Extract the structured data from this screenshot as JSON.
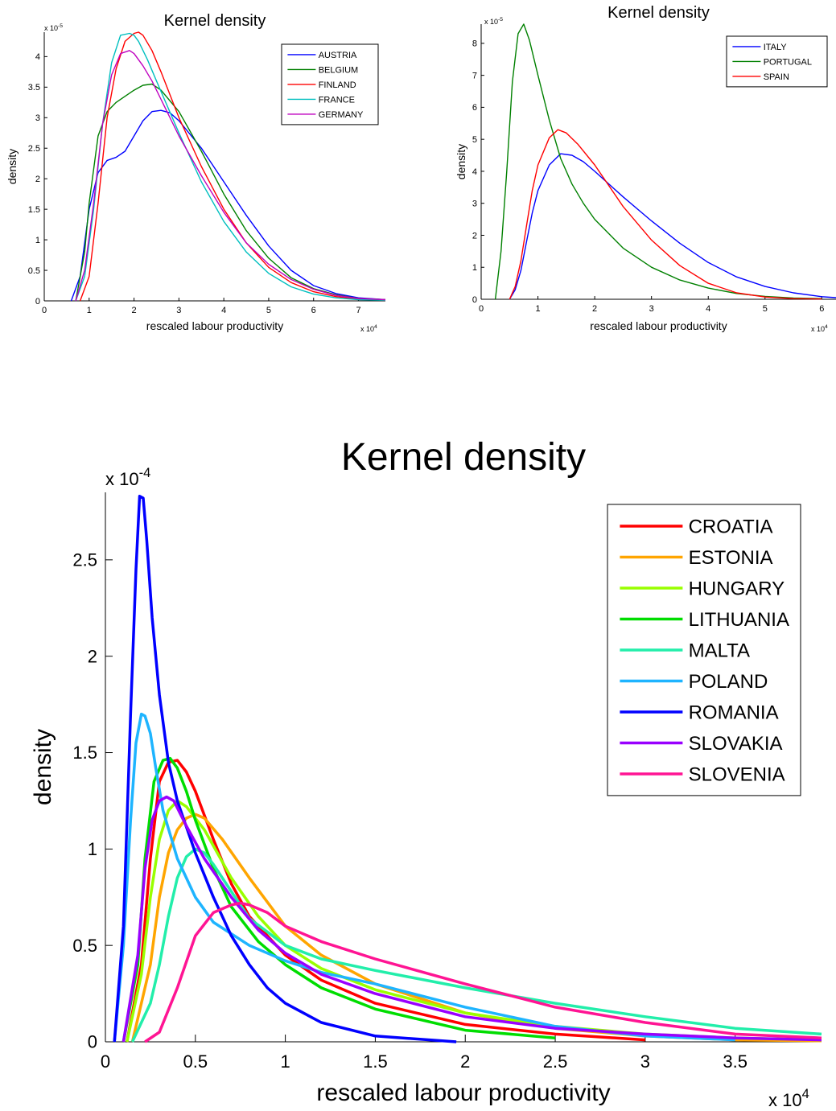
{
  "chart_data": [
    {
      "type": "line",
      "title": "Kernel density",
      "xlabel": "rescaled labour productivity",
      "ylabel": "density",
      "x_exponent_label": "x 10",
      "x_exponent": "4",
      "y_exponent_label": "x 10",
      "y_exponent": "-5",
      "xlim": [
        0,
        7.6
      ],
      "ylim": [
        0,
        4.4
      ],
      "xticks": [
        0,
        1,
        2,
        3,
        4,
        5,
        6,
        7
      ],
      "xtick_labels": [
        "0",
        "1",
        "2",
        "3",
        "4",
        "5",
        "6",
        "7"
      ],
      "yticks": [
        0,
        0.5,
        1,
        1.5,
        2,
        2.5,
        3,
        3.5,
        4
      ],
      "ytick_labels": [
        "0",
        "0.5",
        "1",
        "1.5",
        "2",
        "2.5",
        "3",
        "3.5",
        "4"
      ],
      "legend_position": "top-right",
      "series": [
        {
          "name": "AUSTRIA",
          "color": "#0000FF",
          "x": [
            0.6,
            0.8,
            1.0,
            1.2,
            1.4,
            1.6,
            1.8,
            2.0,
            2.2,
            2.4,
            2.6,
            2.8,
            3.0,
            3.5,
            4.0,
            4.5,
            5.0,
            5.5,
            6.0,
            6.5,
            7.0,
            7.6
          ],
          "y": [
            0,
            0.4,
            1.5,
            2.1,
            2.3,
            2.35,
            2.45,
            2.7,
            2.95,
            3.1,
            3.12,
            3.08,
            2.95,
            2.5,
            1.95,
            1.4,
            0.9,
            0.5,
            0.25,
            0.12,
            0.05,
            0.02
          ]
        },
        {
          "name": "BELGIUM",
          "color": "#008000",
          "x": [
            0.7,
            0.9,
            1.0,
            1.2,
            1.4,
            1.6,
            1.8,
            2.0,
            2.2,
            2.4,
            2.6,
            3.0,
            3.5,
            4.0,
            4.5,
            5.0,
            5.5,
            6.0,
            6.5,
            7.0,
            7.6
          ],
          "y": [
            0,
            0.8,
            1.6,
            2.7,
            3.1,
            3.25,
            3.35,
            3.45,
            3.53,
            3.55,
            3.45,
            3.1,
            2.45,
            1.75,
            1.15,
            0.7,
            0.38,
            0.2,
            0.1,
            0.04,
            0.02
          ]
        },
        {
          "name": "FINLAND",
          "color": "#FF0000",
          "x": [
            0.8,
            1.0,
            1.2,
            1.4,
            1.6,
            1.8,
            2.0,
            2.1,
            2.2,
            2.4,
            2.6,
            3.0,
            3.5,
            4.0,
            4.5,
            5.0,
            5.5,
            6.0,
            6.5,
            7.0,
            7.6
          ],
          "y": [
            0,
            0.4,
            1.6,
            3.0,
            3.8,
            4.25,
            4.38,
            4.4,
            4.35,
            4.1,
            3.75,
            3.0,
            2.2,
            1.5,
            0.95,
            0.55,
            0.3,
            0.15,
            0.07,
            0.03,
            0.01
          ]
        },
        {
          "name": "FRANCE",
          "color": "#00BFBF",
          "x": [
            0.7,
            0.9,
            1.1,
            1.3,
            1.5,
            1.7,
            1.9,
            2.0,
            2.1,
            2.3,
            2.5,
            3.0,
            3.5,
            4.0,
            4.5,
            5.0,
            5.5,
            6.0,
            6.5,
            7.0,
            7.6
          ],
          "y": [
            0,
            0.4,
            1.5,
            2.9,
            3.9,
            4.35,
            4.38,
            4.35,
            4.25,
            3.95,
            3.6,
            2.75,
            1.95,
            1.3,
            0.8,
            0.45,
            0.23,
            0.11,
            0.05,
            0.02,
            0.01
          ]
        },
        {
          "name": "GERMANY",
          "color": "#BF00BF",
          "x": [
            0.7,
            0.9,
            1.1,
            1.3,
            1.5,
            1.7,
            1.9,
            2.0,
            2.2,
            2.4,
            2.6,
            3.0,
            3.5,
            4.0,
            4.5,
            5.0,
            5.5,
            6.0,
            6.5,
            7.0,
            7.6
          ],
          "y": [
            0,
            0.5,
            1.6,
            2.9,
            3.7,
            4.05,
            4.1,
            4.05,
            3.85,
            3.6,
            3.3,
            2.7,
            2.05,
            1.45,
            0.95,
            0.6,
            0.35,
            0.19,
            0.09,
            0.04,
            0.02
          ]
        }
      ]
    },
    {
      "type": "line",
      "title": "Kernel density",
      "xlabel": "rescaled labour productivity",
      "ylabel": "density",
      "x_exponent_label": "x 10",
      "x_exponent": "4",
      "y_exponent_label": "x 10",
      "y_exponent": "-5",
      "xlim": [
        0,
        6.25
      ],
      "ylim": [
        0,
        8.6
      ],
      "xticks": [
        0,
        1,
        2,
        3,
        4,
        5,
        6
      ],
      "xtick_labels": [
        "0",
        "1",
        "2",
        "3",
        "4",
        "5",
        "6"
      ],
      "yticks": [
        0,
        1,
        2,
        3,
        4,
        5,
        6,
        7,
        8
      ],
      "ytick_labels": [
        "0",
        "1",
        "2",
        "3",
        "4",
        "5",
        "6",
        "7",
        "8"
      ],
      "legend_position": "top-right",
      "series": [
        {
          "name": "ITALY",
          "color": "#0000FF",
          "x": [
            0.5,
            0.6,
            0.7,
            0.8,
            0.9,
            1.0,
            1.2,
            1.4,
            1.6,
            1.8,
            2.0,
            2.5,
            3.0,
            3.5,
            4.0,
            4.5,
            5.0,
            5.5,
            6.0,
            6.25
          ],
          "y": [
            0,
            0.3,
            0.9,
            1.8,
            2.7,
            3.4,
            4.2,
            4.55,
            4.5,
            4.3,
            4.0,
            3.2,
            2.45,
            1.75,
            1.15,
            0.7,
            0.4,
            0.2,
            0.08,
            0.05
          ]
        },
        {
          "name": "PORTUGAL",
          "color": "#008000",
          "x": [
            0.25,
            0.35,
            0.45,
            0.55,
            0.65,
            0.75,
            0.85,
            1.0,
            1.2,
            1.4,
            1.6,
            1.8,
            2.0,
            2.5,
            3.0,
            3.5,
            4.0,
            4.5,
            5.0,
            5.5,
            6.0
          ],
          "y": [
            0,
            1.5,
            4.0,
            6.8,
            8.3,
            8.6,
            8.1,
            7.0,
            5.6,
            4.4,
            3.6,
            3.0,
            2.5,
            1.6,
            1.0,
            0.6,
            0.35,
            0.18,
            0.09,
            0.04,
            0.02
          ]
        },
        {
          "name": "SPAIN",
          "color": "#FF0000",
          "x": [
            0.5,
            0.6,
            0.7,
            0.8,
            0.9,
            1.0,
            1.2,
            1.35,
            1.5,
            1.7,
            2.0,
            2.5,
            3.0,
            3.5,
            4.0,
            4.5,
            5.0,
            5.5,
            6.0
          ],
          "y": [
            0,
            0.4,
            1.2,
            2.3,
            3.4,
            4.2,
            5.05,
            5.3,
            5.2,
            4.85,
            4.2,
            2.9,
            1.85,
            1.05,
            0.5,
            0.2,
            0.07,
            0.02,
            0.01
          ]
        }
      ]
    },
    {
      "type": "line",
      "title": "Kernel density",
      "xlabel": "rescaled labour productivity",
      "ylabel": "density",
      "x_exponent_label": "x 10",
      "x_exponent": "4",
      "y_exponent_label": "x 10",
      "y_exponent": "-4",
      "xlim": [
        0,
        3.98
      ],
      "ylim": [
        0,
        2.85
      ],
      "xticks": [
        0,
        0.5,
        1,
        1.5,
        2,
        2.5,
        3,
        3.5
      ],
      "xtick_labels": [
        "0",
        "0.5",
        "1",
        "1.5",
        "2",
        "2.5",
        "3",
        "3.5"
      ],
      "yticks": [
        0,
        0.5,
        1,
        1.5,
        2,
        2.5
      ],
      "ytick_labels": [
        "0",
        "0.5",
        "1",
        "1.5",
        "2",
        "2.5"
      ],
      "legend_position": "top-right",
      "series": [
        {
          "name": "CROATIA",
          "color": "#FF0000",
          "x": [
            0.12,
            0.2,
            0.25,
            0.3,
            0.35,
            0.4,
            0.45,
            0.5,
            0.6,
            0.7,
            0.8,
            1.0,
            1.2,
            1.5,
            2.0,
            2.5,
            3.0
          ],
          "y": [
            0,
            0.4,
            0.95,
            1.35,
            1.45,
            1.46,
            1.4,
            1.3,
            1.05,
            0.82,
            0.65,
            0.45,
            0.32,
            0.2,
            0.09,
            0.04,
            0.01
          ]
        },
        {
          "name": "ESTONIA",
          "color": "#FFA500",
          "x": [
            0.15,
            0.25,
            0.3,
            0.35,
            0.4,
            0.45,
            0.5,
            0.55,
            0.65,
            0.8,
            1.0,
            1.2,
            1.5,
            2.0,
            2.5,
            3.0,
            3.5,
            3.98
          ],
          "y": [
            0,
            0.4,
            0.75,
            0.98,
            1.1,
            1.16,
            1.18,
            1.16,
            1.05,
            0.85,
            0.6,
            0.45,
            0.3,
            0.15,
            0.07,
            0.03,
            0.01,
            0.005
          ]
        },
        {
          "name": "HUNGARY",
          "color": "#99FF00",
          "x": [
            0.12,
            0.2,
            0.25,
            0.3,
            0.35,
            0.4,
            0.45,
            0.55,
            0.7,
            0.85,
            1.0,
            1.2,
            1.5,
            2.0,
            2.5,
            3.0,
            3.5,
            3.98
          ],
          "y": [
            0,
            0.35,
            0.75,
            1.05,
            1.2,
            1.25,
            1.22,
            1.1,
            0.85,
            0.65,
            0.5,
            0.38,
            0.27,
            0.15,
            0.08,
            0.04,
            0.02,
            0.01
          ]
        },
        {
          "name": "LITHUANIA",
          "color": "#00DD00",
          "x": [
            0.1,
            0.18,
            0.22,
            0.27,
            0.32,
            0.36,
            0.4,
            0.45,
            0.5,
            0.6,
            0.7,
            0.85,
            1.0,
            1.2,
            1.5,
            2.0,
            2.5
          ],
          "y": [
            0,
            0.4,
            0.95,
            1.35,
            1.46,
            1.47,
            1.42,
            1.3,
            1.15,
            0.9,
            0.7,
            0.52,
            0.4,
            0.28,
            0.17,
            0.06,
            0.02
          ]
        },
        {
          "name": "MALTA",
          "color": "#22EEAA",
          "x": [
            0.15,
            0.25,
            0.3,
            0.35,
            0.4,
            0.45,
            0.5,
            0.55,
            0.6,
            0.7,
            0.8,
            1.0,
            1.2,
            1.5,
            2.0,
            2.5,
            3.0,
            3.5,
            3.98
          ],
          "y": [
            0,
            0.2,
            0.4,
            0.65,
            0.85,
            0.96,
            1.0,
            0.98,
            0.92,
            0.78,
            0.64,
            0.5,
            0.43,
            0.37,
            0.28,
            0.2,
            0.13,
            0.07,
            0.04
          ]
        },
        {
          "name": "POLAND",
          "color": "#1EB4FF",
          "x": [
            0.05,
            0.1,
            0.14,
            0.17,
            0.2,
            0.22,
            0.25,
            0.28,
            0.32,
            0.4,
            0.5,
            0.6,
            0.8,
            1.0,
            1.2,
            1.5,
            2.0,
            2.5,
            3.0,
            3.5
          ],
          "y": [
            0,
            0.5,
            1.15,
            1.55,
            1.7,
            1.69,
            1.6,
            1.42,
            1.2,
            0.95,
            0.75,
            0.62,
            0.5,
            0.42,
            0.36,
            0.3,
            0.18,
            0.08,
            0.03,
            0.01
          ]
        },
        {
          "name": "ROMANIA",
          "color": "#0000FF",
          "x": [
            0.05,
            0.1,
            0.14,
            0.17,
            0.19,
            0.21,
            0.23,
            0.26,
            0.3,
            0.35,
            0.4,
            0.5,
            0.6,
            0.7,
            0.8,
            0.9,
            1.0,
            1.2,
            1.5,
            1.95
          ],
          "y": [
            0,
            0.6,
            1.7,
            2.45,
            2.83,
            2.82,
            2.6,
            2.2,
            1.8,
            1.45,
            1.25,
            0.98,
            0.75,
            0.55,
            0.4,
            0.28,
            0.2,
            0.1,
            0.03,
            0.0
          ]
        },
        {
          "name": "SLOVAKIA",
          "color": "#9900FF",
          "x": [
            0.1,
            0.18,
            0.22,
            0.26,
            0.3,
            0.34,
            0.38,
            0.45,
            0.55,
            0.7,
            0.85,
            1.0,
            1.2,
            1.5,
            2.0,
            2.5,
            3.0,
            3.5,
            3.98
          ],
          "y": [
            0,
            0.45,
            0.9,
            1.15,
            1.25,
            1.27,
            1.25,
            1.12,
            0.95,
            0.75,
            0.58,
            0.46,
            0.35,
            0.25,
            0.13,
            0.07,
            0.04,
            0.02,
            0.01
          ]
        },
        {
          "name": "SLOVENIA",
          "color": "#FF1493",
          "x": [
            0.22,
            0.3,
            0.4,
            0.5,
            0.6,
            0.7,
            0.75,
            0.8,
            0.9,
            1.0,
            1.2,
            1.5,
            2.0,
            2.5,
            3.0,
            3.5,
            3.98
          ],
          "y": [
            0,
            0.05,
            0.28,
            0.55,
            0.67,
            0.71,
            0.72,
            0.71,
            0.67,
            0.6,
            0.52,
            0.43,
            0.3,
            0.18,
            0.1,
            0.04,
            0.02
          ]
        }
      ]
    }
  ]
}
